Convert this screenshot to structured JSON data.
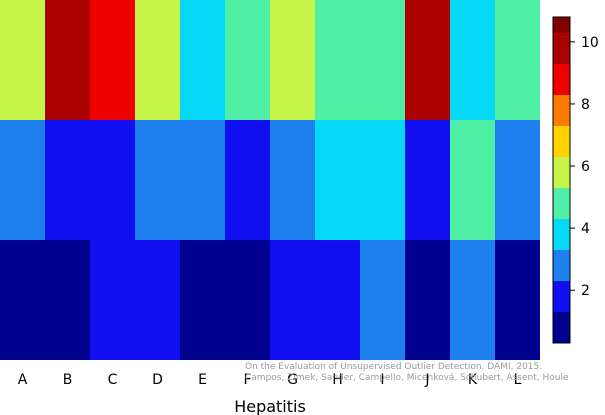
{
  "chart_data": {
    "type": "heatmap",
    "title": "",
    "xlabel": "Hepatitis",
    "ylabel": "",
    "x_categories": [
      "A",
      "B",
      "C",
      "D",
      "E",
      "F",
      "G",
      "H",
      "I",
      "J",
      "K",
      "L"
    ],
    "rows": 3,
    "values": [
      [
        6,
        10,
        9,
        6,
        4,
        5,
        6,
        5,
        5,
        10,
        4,
        5
      ],
      [
        3,
        2,
        2,
        3,
        3,
        2,
        3,
        4,
        4,
        2,
        5,
        3
      ],
      [
        1,
        1,
        2,
        2,
        1,
        1,
        2,
        2,
        3,
        1,
        3,
        1
      ]
    ],
    "colorbar": {
      "range": [
        0.3,
        10.8
      ],
      "ticks": [
        2,
        4,
        6,
        8,
        10
      ],
      "levels": [
        {
          "low": 0.3,
          "high": 1.3,
          "color": "#00008f"
        },
        {
          "low": 1.3,
          "high": 2.3,
          "color": "#0f0fef"
        },
        {
          "low": 2.3,
          "high": 3.3,
          "color": "#1e7fef"
        },
        {
          "low": 3.3,
          "high": 4.3,
          "color": "#05d9f5"
        },
        {
          "low": 4.3,
          "high": 5.3,
          "color": "#4ff0a6"
        },
        {
          "low": 5.3,
          "high": 6.3,
          "color": "#c5f548"
        },
        {
          "low": 6.3,
          "high": 7.3,
          "color": "#ffd200"
        },
        {
          "low": 7.3,
          "high": 8.3,
          "color": "#ff7a00"
        },
        {
          "low": 8.3,
          "high": 9.3,
          "color": "#ef0000"
        },
        {
          "low": 9.3,
          "high": 10.3,
          "color": "#ab0000"
        },
        {
          "low": 10.3,
          "high": 10.8,
          "color": "#800000"
        }
      ]
    }
  },
  "credit": {
    "line1": "On the Evaluation of Unsupervised Outlier Detection. DAMI, 2015.",
    "line2": "Campos, Zimek, Sander, Campello, Micenková, Schubert, Assent, Houle"
  }
}
